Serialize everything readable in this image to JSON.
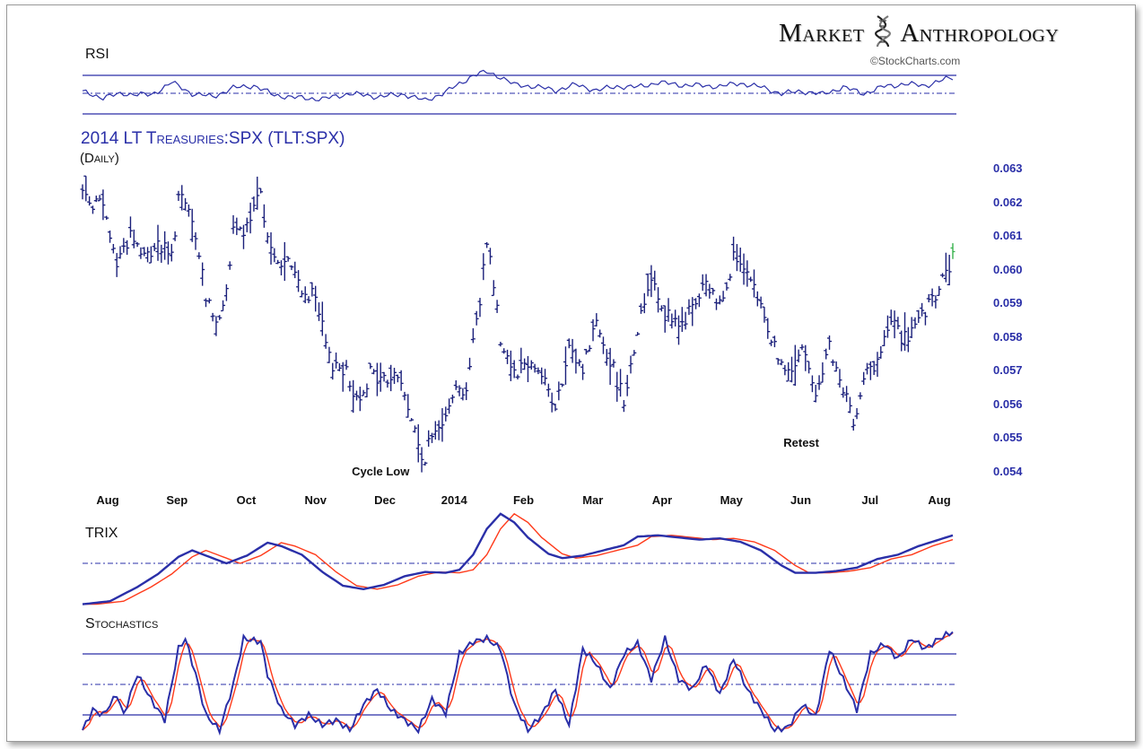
{
  "brand": {
    "left": "Market",
    "right": "Anthropology",
    "icon": "dna-helix-icon"
  },
  "copyright": "©StockCharts.com",
  "chart_data": {
    "type": "line",
    "title": "2014  LT Treasuries:SPX (TLT:SPX)",
    "subtitle": "(Daily)",
    "panels": {
      "rsi": "RSI",
      "trix": "TRIX",
      "stochastics": "Stochastics"
    },
    "x_labels": [
      "Aug",
      "Sep",
      "Oct",
      "Nov",
      "Dec",
      "2014",
      "Feb",
      "Mar",
      "Apr",
      "May",
      "Jun",
      "Jul",
      "Aug"
    ],
    "y_labels": [
      "0.063",
      "0.062",
      "0.061",
      "0.060",
      "0.059",
      "0.058",
      "0.057",
      "0.056",
      "0.055",
      "0.054"
    ],
    "ylim": [
      0.054,
      0.063
    ],
    "annotations": [
      {
        "text": "Cycle Low",
        "date_index": 99
      },
      {
        "text": "Retest",
        "date_index": 225
      }
    ],
    "colors": {
      "price": "#1a1f7a",
      "primary": "#2a2fa8",
      "signal": "#ff3a1a",
      "last_bar": "#37b24d"
    },
    "anchors": [
      [
        0,
        0.0623
      ],
      [
        6,
        0.0618
      ],
      [
        10,
        0.0602
      ],
      [
        14,
        0.0611
      ],
      [
        18,
        0.0603
      ],
      [
        22,
        0.0608
      ],
      [
        26,
        0.0603
      ],
      [
        28,
        0.0622
      ],
      [
        32,
        0.0614
      ],
      [
        36,
        0.0593
      ],
      [
        40,
        0.0583
      ],
      [
        44,
        0.061
      ],
      [
        48,
        0.0612
      ],
      [
        52,
        0.0622
      ],
      [
        56,
        0.0602
      ],
      [
        60,
        0.0602
      ],
      [
        64,
        0.0594
      ],
      [
        68,
        0.0591
      ],
      [
        72,
        0.0573
      ],
      [
        76,
        0.0571
      ],
      [
        80,
        0.0562
      ],
      [
        84,
        0.0569
      ],
      [
        88,
        0.0567
      ],
      [
        92,
        0.0569
      ],
      [
        96,
        0.0556
      ],
      [
        99,
        0.0543
      ],
      [
        104,
        0.0554
      ],
      [
        108,
        0.0564
      ],
      [
        112,
        0.0565
      ],
      [
        116,
        0.0591
      ],
      [
        118,
        0.061
      ],
      [
        120,
        0.0596
      ],
      [
        122,
        0.058
      ],
      [
        126,
        0.057
      ],
      [
        130,
        0.0573
      ],
      [
        134,
        0.057
      ],
      [
        138,
        0.0558
      ],
      [
        142,
        0.0575
      ],
      [
        146,
        0.0571
      ],
      [
        150,
        0.0585
      ],
      [
        154,
        0.0573
      ],
      [
        158,
        0.0562
      ],
      [
        162,
        0.0582
      ],
      [
        166,
        0.0599
      ],
      [
        170,
        0.0587
      ],
      [
        174,
        0.0582
      ],
      [
        178,
        0.0589
      ],
      [
        182,
        0.0595
      ],
      [
        186,
        0.059
      ],
      [
        190,
        0.0604
      ],
      [
        194,
        0.0597
      ],
      [
        198,
        0.0589
      ],
      [
        202,
        0.0577
      ],
      [
        206,
        0.0568
      ],
      [
        210,
        0.0576
      ],
      [
        214,
        0.0565
      ],
      [
        218,
        0.0576
      ],
      [
        222,
        0.0563
      ],
      [
        225,
        0.0556
      ],
      [
        228,
        0.0568
      ],
      [
        232,
        0.0572
      ],
      [
        236,
        0.0585
      ],
      [
        240,
        0.0579
      ],
      [
        244,
        0.0584
      ],
      [
        248,
        0.059
      ],
      [
        252,
        0.0599
      ],
      [
        254,
        0.0603
      ]
    ],
    "rsi_anchors": [
      [
        0,
        62
      ],
      [
        6,
        48
      ],
      [
        12,
        58
      ],
      [
        20,
        54
      ],
      [
        26,
        86
      ],
      [
        32,
        58
      ],
      [
        38,
        50
      ],
      [
        44,
        72
      ],
      [
        50,
        78
      ],
      [
        56,
        54
      ],
      [
        62,
        48
      ],
      [
        70,
        44
      ],
      [
        78,
        58
      ],
      [
        86,
        50
      ],
      [
        94,
        56
      ],
      [
        100,
        40
      ],
      [
        106,
        62
      ],
      [
        110,
        82
      ],
      [
        114,
        104
      ],
      [
        118,
        112
      ],
      [
        122,
        100
      ],
      [
        126,
        80
      ],
      [
        132,
        76
      ],
      [
        138,
        66
      ],
      [
        144,
        80
      ],
      [
        150,
        66
      ],
      [
        156,
        76
      ],
      [
        162,
        74
      ],
      [
        168,
        86
      ],
      [
        174,
        80
      ],
      [
        180,
        78
      ],
      [
        186,
        76
      ],
      [
        192,
        84
      ],
      [
        198,
        74
      ],
      [
        204,
        58
      ],
      [
        210,
        64
      ],
      [
        216,
        56
      ],
      [
        222,
        74
      ],
      [
        228,
        58
      ],
      [
        234,
        76
      ],
      [
        240,
        82
      ],
      [
        246,
        78
      ],
      [
        252,
        94
      ],
      [
        254,
        98
      ]
    ],
    "trix_anchors": [
      [
        0,
        -0.95
      ],
      [
        8,
        -0.88
      ],
      [
        16,
        -0.55
      ],
      [
        22,
        -0.25
      ],
      [
        28,
        0.15
      ],
      [
        32,
        0.3
      ],
      [
        38,
        0.12
      ],
      [
        42,
        0.0
      ],
      [
        48,
        0.18
      ],
      [
        54,
        0.48
      ],
      [
        58,
        0.4
      ],
      [
        64,
        0.2
      ],
      [
        70,
        -0.2
      ],
      [
        76,
        -0.52
      ],
      [
        82,
        -0.6
      ],
      [
        88,
        -0.5
      ],
      [
        94,
        -0.3
      ],
      [
        100,
        -0.2
      ],
      [
        106,
        -0.22
      ],
      [
        110,
        -0.15
      ],
      [
        114,
        0.2
      ],
      [
        118,
        0.8
      ],
      [
        122,
        1.15
      ],
      [
        126,
        0.95
      ],
      [
        130,
        0.6
      ],
      [
        136,
        0.22
      ],
      [
        140,
        0.12
      ],
      [
        146,
        0.18
      ],
      [
        152,
        0.3
      ],
      [
        158,
        0.42
      ],
      [
        162,
        0.62
      ],
      [
        168,
        0.65
      ],
      [
        174,
        0.6
      ],
      [
        180,
        0.55
      ],
      [
        186,
        0.58
      ],
      [
        192,
        0.5
      ],
      [
        198,
        0.3
      ],
      [
        204,
        -0.05
      ],
      [
        208,
        -0.22
      ],
      [
        214,
        -0.22
      ],
      [
        220,
        -0.18
      ],
      [
        226,
        -0.1
      ],
      [
        232,
        0.1
      ],
      [
        238,
        0.2
      ],
      [
        244,
        0.4
      ],
      [
        250,
        0.55
      ],
      [
        254,
        0.65
      ]
    ],
    "stoch_anchors": [
      [
        0,
        5
      ],
      [
        3,
        25
      ],
      [
        6,
        20
      ],
      [
        10,
        40
      ],
      [
        12,
        20
      ],
      [
        16,
        60
      ],
      [
        20,
        35
      ],
      [
        24,
        15
      ],
      [
        28,
        85
      ],
      [
        30,
        95
      ],
      [
        33,
        60
      ],
      [
        36,
        20
      ],
      [
        40,
        5
      ],
      [
        44,
        50
      ],
      [
        47,
        95
      ],
      [
        52,
        92
      ],
      [
        54,
        60
      ],
      [
        58,
        25
      ],
      [
        62,
        10
      ],
      [
        66,
        20
      ],
      [
        70,
        10
      ],
      [
        74,
        15
      ],
      [
        78,
        5
      ],
      [
        82,
        30
      ],
      [
        86,
        45
      ],
      [
        90,
        25
      ],
      [
        94,
        15
      ],
      [
        98,
        5
      ],
      [
        102,
        35
      ],
      [
        106,
        22
      ],
      [
        110,
        80
      ],
      [
        114,
        92
      ],
      [
        118,
        95
      ],
      [
        122,
        85
      ],
      [
        126,
        30
      ],
      [
        130,
        5
      ],
      [
        134,
        20
      ],
      [
        138,
        45
      ],
      [
        142,
        10
      ],
      [
        146,
        85
      ],
      [
        150,
        70
      ],
      [
        154,
        45
      ],
      [
        158,
        80
      ],
      [
        162,
        90
      ],
      [
        166,
        55
      ],
      [
        170,
        95
      ],
      [
        174,
        55
      ],
      [
        178,
        45
      ],
      [
        182,
        70
      ],
      [
        186,
        40
      ],
      [
        190,
        75
      ],
      [
        194,
        45
      ],
      [
        198,
        25
      ],
      [
        202,
        5
      ],
      [
        206,
        8
      ],
      [
        210,
        30
      ],
      [
        214,
        18
      ],
      [
        218,
        85
      ],
      [
        222,
        55
      ],
      [
        226,
        25
      ],
      [
        230,
        80
      ],
      [
        234,
        90
      ],
      [
        238,
        75
      ],
      [
        242,
        95
      ],
      [
        246,
        85
      ],
      [
        250,
        95
      ],
      [
        254,
        102
      ]
    ]
  }
}
